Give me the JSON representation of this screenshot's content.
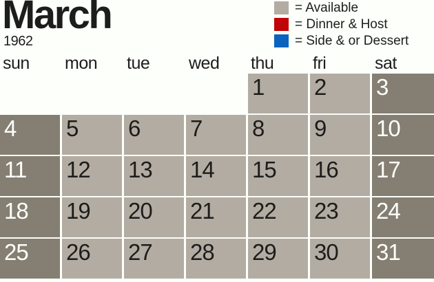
{
  "header": {
    "month": "March",
    "year": "1962"
  },
  "legend": [
    {
      "name": "available",
      "color": "#b3aca3",
      "label": "= Available"
    },
    {
      "name": "dinner-host",
      "color": "#c00408",
      "label": "= Dinner & Host"
    },
    {
      "name": "side-dessert",
      "color": "#0b63bd",
      "label": "= Side & or Dessert"
    }
  ],
  "weekdays": [
    "sun",
    "mon",
    "tue",
    "wed",
    "thu",
    "fri",
    "sat"
  ],
  "calendar": {
    "weeks": [
      [
        "",
        "",
        "",
        "",
        "1",
        "2",
        "3"
      ],
      [
        "4",
        "5",
        "6",
        "7",
        "8",
        "9",
        "10"
      ],
      [
        "11",
        "12",
        "13",
        "14",
        "15",
        "16",
        "17"
      ],
      [
        "18",
        "19",
        "20",
        "21",
        "22",
        "23",
        "24"
      ],
      [
        "25",
        "26",
        "27",
        "28",
        "29",
        "30",
        "31"
      ]
    ],
    "all_days_state": "available"
  },
  "colors": {
    "background": "#fdfffa",
    "heading_text": "#1d1d1b",
    "weekday_cell": "#b3aca3",
    "weekend_cell": "#857e73",
    "weekday_text": "#1d1d1b",
    "weekend_text": "#fdfffa"
  }
}
